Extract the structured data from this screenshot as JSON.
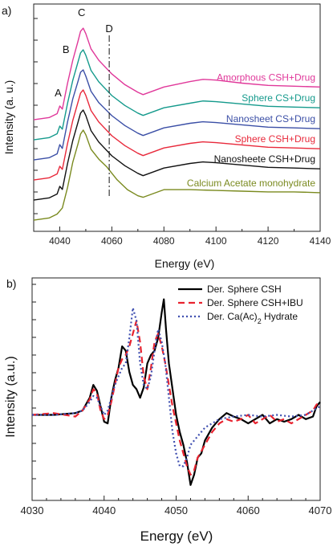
{
  "chart_data": [
    {
      "type": "line",
      "panel_label": "a)",
      "xlabel": "Energy (eV)",
      "ylabel": "Intensity (a. u.)",
      "xlim": [
        4030,
        4140
      ],
      "x_ticks": [
        4040,
        4060,
        4080,
        4100,
        4120,
        4140
      ],
      "x_tick_labels": [
        "4040",
        "4060",
        "4080",
        "4100",
        "4120",
        "4140"
      ],
      "y_ticks": 10,
      "stacked_offset": true,
      "peak_labels": [
        {
          "label": "A",
          "x": 4040
        },
        {
          "label": "B",
          "x": 4043
        },
        {
          "label": "C",
          "x": 4049
        },
        {
          "label": "D",
          "x": 4059
        }
      ],
      "vline": {
        "label": "D",
        "x": 4059,
        "style": "dash-dot"
      },
      "series": [
        {
          "name": "Amorphous CSH+Drug",
          "color": "#e0389a",
          "offset": 5,
          "x": [
            4030,
            4036,
            4039,
            4040,
            4041,
            4043,
            4045,
            4047,
            4048,
            4049,
            4050,
            4052,
            4055,
            4060,
            4065,
            4070,
            4072,
            4080,
            4090,
            4095,
            4100,
            4110,
            4120,
            4130,
            4140
          ],
          "y": [
            0.02,
            0.05,
            0.1,
            0.2,
            0.16,
            0.5,
            0.8,
            1.05,
            1.18,
            1.22,
            1.15,
            0.95,
            0.8,
            0.62,
            0.48,
            0.38,
            0.35,
            0.45,
            0.52,
            0.55,
            0.54,
            0.5,
            0.47,
            0.46,
            0.45
          ]
        },
        {
          "name": "Sphere CS+Drug",
          "color": "#159a8c",
          "offset": 4,
          "x": [
            4030,
            4036,
            4039,
            4040,
            4041,
            4043,
            4045,
            4047,
            4048,
            4049,
            4050,
            4052,
            4055,
            4060,
            4065,
            4070,
            4072,
            4080,
            4090,
            4095,
            4100,
            4110,
            4120,
            4130,
            4140
          ],
          "y": [
            0.02,
            0.05,
            0.1,
            0.2,
            0.16,
            0.5,
            0.8,
            1.04,
            1.16,
            1.2,
            1.13,
            0.93,
            0.78,
            0.6,
            0.47,
            0.37,
            0.34,
            0.44,
            0.5,
            0.53,
            0.52,
            0.49,
            0.46,
            0.45,
            0.44
          ]
        },
        {
          "name": "Nanosheet CS+Drug",
          "color": "#3b4fa6",
          "offset": 3,
          "x": [
            4030,
            4036,
            4039,
            4040,
            4041,
            4043,
            4045,
            4047,
            4048,
            4049,
            4050,
            4052,
            4055,
            4060,
            4065,
            4070,
            4072,
            4080,
            4090,
            4095,
            4100,
            4110,
            4120,
            4130,
            4140
          ],
          "y": [
            0.02,
            0.05,
            0.1,
            0.22,
            0.17,
            0.52,
            0.82,
            1.05,
            1.17,
            1.2,
            1.12,
            0.92,
            0.77,
            0.6,
            0.47,
            0.37,
            0.34,
            0.44,
            0.5,
            0.52,
            0.51,
            0.48,
            0.45,
            0.44,
            0.43
          ]
        },
        {
          "name": "Sphere CSH+Drug",
          "color": "#e8293b",
          "offset": 2,
          "x": [
            4030,
            4036,
            4039,
            4040,
            4041,
            4043,
            4045,
            4047,
            4048,
            4049,
            4050,
            4052,
            4055,
            4060,
            4065,
            4070,
            4072,
            4080,
            4090,
            4095,
            4100,
            4110,
            4120,
            4130,
            4140
          ],
          "y": [
            0.02,
            0.05,
            0.1,
            0.2,
            0.16,
            0.5,
            0.8,
            1.04,
            1.16,
            1.2,
            1.13,
            0.93,
            0.78,
            0.6,
            0.47,
            0.37,
            0.34,
            0.44,
            0.5,
            0.52,
            0.51,
            0.48,
            0.45,
            0.44,
            0.43
          ]
        },
        {
          "name": "Nanosheete CSH+Drug",
          "color": "#111111",
          "offset": 1,
          "x": [
            4030,
            4036,
            4039,
            4040,
            4041,
            4043,
            4045,
            4047,
            4048,
            4049,
            4050,
            4052,
            4055,
            4060,
            4065,
            4070,
            4072,
            4080,
            4090,
            4095,
            4100,
            4110,
            4120,
            4130,
            4140
          ],
          "y": [
            0.02,
            0.05,
            0.1,
            0.2,
            0.16,
            0.5,
            0.8,
            1.04,
            1.16,
            1.2,
            1.13,
            0.93,
            0.78,
            0.6,
            0.47,
            0.37,
            0.34,
            0.44,
            0.5,
            0.52,
            0.51,
            0.48,
            0.45,
            0.44,
            0.43
          ]
        },
        {
          "name": "Calcium Acetate monohydrate",
          "color": "#7a8a1f",
          "offset": 0,
          "x": [
            4030,
            4036,
            4039,
            4041,
            4043,
            4045,
            4047,
            4048,
            4049,
            4050,
            4052,
            4055,
            4058,
            4062,
            4066,
            4070,
            4072,
            4080,
            4090,
            4100,
            4110,
            4120,
            4130,
            4140
          ],
          "y": [
            0.02,
            0.05,
            0.1,
            0.18,
            0.45,
            0.78,
            1.02,
            1.15,
            1.2,
            1.14,
            0.95,
            0.82,
            0.72,
            0.55,
            0.42,
            0.34,
            0.32,
            0.42,
            0.42,
            0.41,
            0.4,
            0.39,
            0.39,
            0.38
          ]
        }
      ]
    },
    {
      "type": "line",
      "panel_label": "b)",
      "xlabel": "Energy (eV)",
      "ylabel": "Intensity (a.u.)",
      "xlim": [
        4030,
        4070
      ],
      "ylim": [
        -1.0,
        1.6
      ],
      "x_ticks": [
        4030,
        4040,
        4050,
        4060,
        4070
      ],
      "x_tick_labels": [
        "4030",
        "4040",
        "4050",
        "4060",
        "4070"
      ],
      "y_ticks": 12,
      "series": [
        {
          "name": "Der. Sphere CSH",
          "legend_text": "Der. Sphere CSH",
          "color": "#000000",
          "dash": "none",
          "x": [
            4030,
            4033,
            4036,
            4037,
            4038,
            4038.5,
            4039,
            4039.5,
            4040,
            4040.5,
            4041,
            4041.5,
            4042,
            4042.5,
            4043,
            4043.5,
            4044,
            4044.5,
            4045,
            4045.5,
            4046,
            4046.5,
            4047,
            4047.5,
            4048,
            4048.3,
            4048.6,
            4049,
            4049.5,
            4050,
            4050.5,
            4051,
            4051.5,
            4052,
            4052.5,
            4053,
            4053.5,
            4054,
            4055,
            4056,
            4057,
            4058,
            4059,
            4060,
            4061,
            4062,
            4063,
            4064,
            4065,
            4066,
            4067,
            4068,
            4069,
            4069.5,
            4070
          ],
          "y": [
            0.0,
            0.0,
            0.02,
            0.05,
            0.2,
            0.35,
            0.28,
            0.1,
            -0.08,
            -0.1,
            0.2,
            0.4,
            0.55,
            0.8,
            0.75,
            0.5,
            0.35,
            0.3,
            0.2,
            0.32,
            0.6,
            0.7,
            0.75,
            0.9,
            1.2,
            1.35,
            1.0,
            0.6,
            0.3,
            0.0,
            -0.2,
            -0.35,
            -0.55,
            -0.82,
            -0.7,
            -0.5,
            -0.45,
            -0.3,
            -0.15,
            -0.05,
            0.02,
            -0.02,
            -0.05,
            -0.1,
            -0.05,
            0.0,
            -0.1,
            -0.05,
            -0.08,
            -0.05,
            0.0,
            -0.05,
            -0.02,
            0.1,
            0.15
          ]
        },
        {
          "name": "Der. Sphere CSH+IBU",
          "legend_text": "Der. Sphere CSH+IBU",
          "color": "#e8232f",
          "dash": "8,5",
          "x": [
            4030,
            4033,
            4036,
            4037,
            4038,
            4038.5,
            4039,
            4039.5,
            4040,
            4040.5,
            4041,
            4041.5,
            4042,
            4042.5,
            4043,
            4043.5,
            4044,
            4044.5,
            4045,
            4045.5,
            4046,
            4046.5,
            4047,
            4047.5,
            4048,
            4048.5,
            4049,
            4049.5,
            4050,
            4050.5,
            4051,
            4051.5,
            4052,
            4052.5,
            4053,
            4054,
            4055,
            4056,
            4057,
            4058,
            4059,
            4060,
            4061,
            4062,
            4063,
            4064,
            4065,
            4066,
            4067,
            4068,
            4069,
            4069.5,
            4070
          ],
          "y": [
            0.0,
            0.02,
            -0.02,
            0.05,
            0.18,
            0.3,
            0.25,
            0.05,
            -0.05,
            0.0,
            0.15,
            0.35,
            0.55,
            0.65,
            0.7,
            0.8,
            0.95,
            1.1,
            0.85,
            0.45,
            0.3,
            0.55,
            0.85,
            0.95,
            0.8,
            0.6,
            0.35,
            0.1,
            -0.1,
            -0.3,
            -0.45,
            -0.6,
            -0.7,
            -0.65,
            -0.5,
            -0.35,
            -0.2,
            -0.1,
            -0.05,
            -0.08,
            -0.05,
            0.0,
            -0.1,
            -0.05,
            0.0,
            -0.08,
            -0.05,
            -0.1,
            -0.05,
            0.0,
            0.05,
            0.12,
            0.15
          ]
        },
        {
          "name": "Der. Ca(Ac)2 Hydrate",
          "legend_text": "Der. Ca(Ac)",
          "legend_sub": "2",
          "legend_tail": " Hydrate",
          "color": "#3f4fb0",
          "dash": "2,3",
          "x": [
            4030,
            4033,
            4036,
            4037,
            4038,
            4038.5,
            4039,
            4039.5,
            4040,
            4040.5,
            4041,
            4041.5,
            4042,
            4042.5,
            4043,
            4043.5,
            4044,
            4044.5,
            4045,
            4045.5,
            4046,
            4046.5,
            4047,
            4047.5,
            4048,
            4048.5,
            4049,
            4049.5,
            4050,
            4050.5,
            4051,
            4051.5,
            4052,
            4053,
            4054,
            4055,
            4056,
            4058,
            4060,
            4062,
            4064,
            4066,
            4068,
            4069,
            4070
          ],
          "y": [
            0.0,
            0.0,
            0.02,
            0.05,
            0.15,
            0.22,
            0.2,
            0.1,
            0.0,
            0.05,
            0.2,
            0.35,
            0.45,
            0.55,
            0.6,
            0.9,
            1.25,
            1.1,
            0.6,
            0.35,
            0.3,
            0.45,
            0.75,
            1.0,
            0.85,
            0.6,
            0.2,
            -0.2,
            -0.45,
            -0.6,
            -0.6,
            -0.5,
            -0.35,
            -0.25,
            -0.15,
            -0.1,
            -0.05,
            -0.02,
            0.0,
            -0.02,
            0.0,
            -0.02,
            0.0,
            0.05,
            0.1
          ]
        }
      ]
    }
  ]
}
